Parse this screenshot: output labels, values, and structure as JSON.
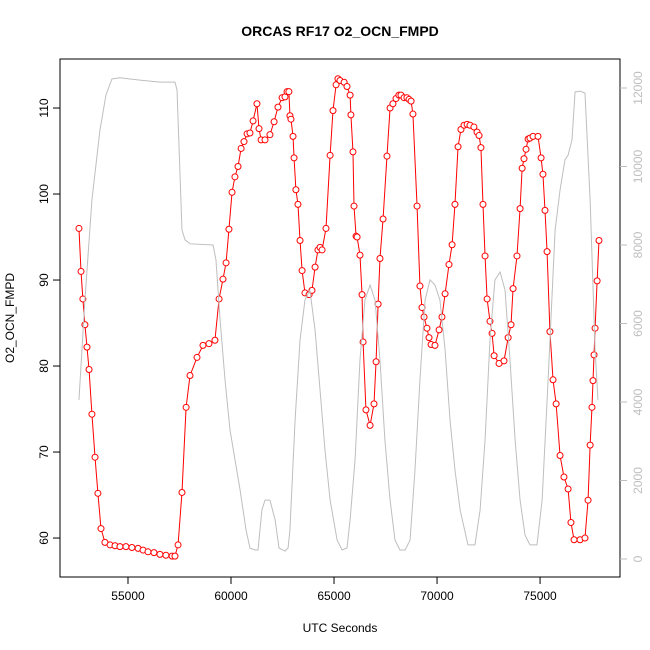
{
  "chart_data": {
    "type": "line",
    "title": "ORCAS RF17 O2_OCN_FMPD",
    "xlabel": "UTC Seconds",
    "ylabel": "O2_OCN_FMPD",
    "xlim": [
      51700,
      78880
    ],
    "ylim": [
      55.47,
      115.7
    ],
    "y2lim": [
      -459,
      12739
    ],
    "xticks": [
      55000,
      60000,
      65000,
      70000,
      75000
    ],
    "yticks": [
      60,
      70,
      80,
      90,
      100,
      110
    ],
    "y2ticks": [
      0,
      2000,
      4000,
      6000,
      8000,
      10000,
      12000
    ],
    "series": [
      {
        "color": "#ff0000",
        "marker": "circle",
        "x": [
          52620,
          52720,
          52810,
          52910,
          53010,
          53110,
          53250,
          53400,
          53540,
          53690,
          53880,
          54130,
          54370,
          54610,
          54900,
          55190,
          55490,
          55730,
          55970,
          56260,
          56550,
          56840,
          57140,
          57280,
          57430,
          57620,
          57820,
          58010,
          58350,
          58640,
          58930,
          59220,
          59420,
          59610,
          59760,
          59900,
          60050,
          60190,
          60340,
          60490,
          60630,
          60780,
          60920,
          61070,
          61260,
          61360,
          61460,
          61650,
          61890,
          62090,
          62280,
          62480,
          62620,
          62720,
          62810,
          62860,
          62910,
          63010,
          63060,
          63150,
          63250,
          63350,
          63450,
          63590,
          63790,
          63930,
          64080,
          64220,
          64320,
          64420,
          64610,
          64810,
          64950,
          65100,
          65190,
          65290,
          65490,
          65630,
          65780,
          65820,
          65920,
          65970,
          66070,
          66120,
          66260,
          66360,
          66410,
          66550,
          66750,
          66940,
          67040,
          67140,
          67230,
          67380,
          67570,
          67720,
          67860,
          68010,
          68150,
          68250,
          68400,
          68540,
          68640,
          68740,
          68830,
          69030,
          69170,
          69270,
          69370,
          69510,
          69610,
          69710,
          69900,
          70100,
          70240,
          70390,
          70580,
          70730,
          70870,
          71020,
          71160,
          71310,
          71460,
          71600,
          71790,
          71940,
          72040,
          72130,
          72230,
          72330,
          72430,
          72570,
          72670,
          72770,
          73010,
          73250,
          73450,
          73590,
          73690,
          73880,
          74030,
          74130,
          74220,
          74320,
          74420,
          74510,
          74660,
          74900,
          75050,
          75140,
          75240,
          75340,
          75480,
          75630,
          75780,
          75970,
          76160,
          76360,
          76500,
          76650,
          76940,
          77180,
          77330,
          77430,
          77520,
          77570,
          77620,
          77670,
          77770,
          77860
        ],
        "values": [
          96,
          91,
          87.8,
          84.8,
          82.2,
          79.6,
          74.4,
          69.4,
          65.2,
          61.1,
          59.5,
          59.2,
          59.1,
          59,
          59,
          58.9,
          58.8,
          58.6,
          58.4,
          58.3,
          58.1,
          58,
          57.9,
          57.9,
          59.2,
          65.3,
          75.2,
          78.9,
          81,
          82.4,
          82.6,
          83,
          87.8,
          90.1,
          92,
          95.9,
          100.2,
          102,
          103.2,
          105.3,
          106.1,
          107,
          107.1,
          108.5,
          110.5,
          107.6,
          106.3,
          106.3,
          106.9,
          108.4,
          110.1,
          111.2,
          111.3,
          111.9,
          111.9,
          109.1,
          108.7,
          106.7,
          104.2,
          100.5,
          98.8,
          94.6,
          91.1,
          88.5,
          88.3,
          88.8,
          91.5,
          93.5,
          93.8,
          93.5,
          96,
          104.5,
          109.7,
          112.7,
          113.4,
          113.2,
          113,
          112.5,
          111.5,
          109.2,
          104.9,
          98.6,
          95.1,
          95,
          92.9,
          88.3,
          82.8,
          74.9,
          73.1,
          75.6,
          80.5,
          87.2,
          92.5,
          97.1,
          104.4,
          110,
          110.5,
          111.1,
          111.5,
          111.5,
          111.2,
          111.2,
          111,
          110.8,
          109.3,
          98.6,
          89.3,
          86.8,
          85.7,
          84.4,
          83.3,
          82.5,
          82.4,
          84.2,
          85.7,
          88.4,
          91.8,
          94.1,
          98.8,
          105.5,
          107.5,
          108,
          108.1,
          108,
          107.8,
          107.2,
          106.8,
          105.4,
          98.8,
          92.8,
          87.8,
          85.2,
          83.8,
          81.2,
          80.3,
          80.6,
          83.3,
          84.8,
          89,
          92.8,
          98.3,
          103,
          104.1,
          105.2,
          106.4,
          106.5,
          106.7,
          106.7,
          104.2,
          102.3,
          98.1,
          93.3,
          84,
          78.4,
          75.6,
          69.6,
          67.1,
          65.7,
          61.8,
          59.8,
          59.8,
          60,
          64.4,
          70.8,
          75.2,
          78.3,
          81.3,
          84.4,
          89.9,
          94.6
        ]
      },
      {
        "color": "#bebebe",
        "axis": "y2",
        "x": [
          52620,
          52910,
          53250,
          53640,
          53930,
          54220,
          54610,
          55580,
          56550,
          57280,
          57380,
          57620,
          57770,
          58010,
          59130,
          59270,
          59470,
          59710,
          59950,
          60440,
          60730,
          60920,
          61160,
          61310,
          61500,
          61650,
          61890,
          62140,
          62330,
          62620,
          62770,
          62860,
          63110,
          63350,
          63590,
          63830,
          64080,
          64320,
          64560,
          64810,
          65150,
          65390,
          65630,
          65780,
          66020,
          66260,
          66500,
          66750,
          66990,
          67230,
          67470,
          67720,
          67960,
          68200,
          68450,
          68690,
          68930,
          69170,
          69420,
          69660,
          69900,
          70140,
          70390,
          70630,
          70870,
          71120,
          71500,
          71840,
          72090,
          72330,
          72570,
          72810,
          73060,
          73300,
          73540,
          73790,
          74030,
          74270,
          74510,
          74850,
          75100,
          75390,
          75730,
          75970,
          76210,
          76360,
          76550,
          76700,
          76940,
          77180,
          77430,
          77670,
          77810
        ],
        "values": [
          4050,
          6600,
          9150,
          10930,
          11820,
          12230,
          12260,
          12200,
          12150,
          12150,
          11950,
          8380,
          8130,
          8030,
          8000,
          7620,
          6090,
          4560,
          3290,
          1760,
          740,
          280,
          230,
          230,
          1250,
          1500,
          1500,
          1000,
          280,
          200,
          280,
          740,
          3540,
          5580,
          6600,
          6850,
          5830,
          4310,
          2780,
          1500,
          480,
          230,
          280,
          1000,
          2520,
          5070,
          6600,
          6980,
          6600,
          5070,
          3030,
          1500,
          480,
          230,
          230,
          480,
          2270,
          4560,
          6600,
          7110,
          6980,
          6600,
          5330,
          3540,
          2270,
          1250,
          360,
          360,
          1250,
          3030,
          5580,
          7110,
          7310,
          6850,
          5070,
          3030,
          1500,
          610,
          360,
          360,
          1500,
          4560,
          8380,
          9400,
          10170,
          10290,
          10680,
          11900,
          11920,
          11870,
          9150,
          5330,
          4050
        ]
      }
    ]
  }
}
